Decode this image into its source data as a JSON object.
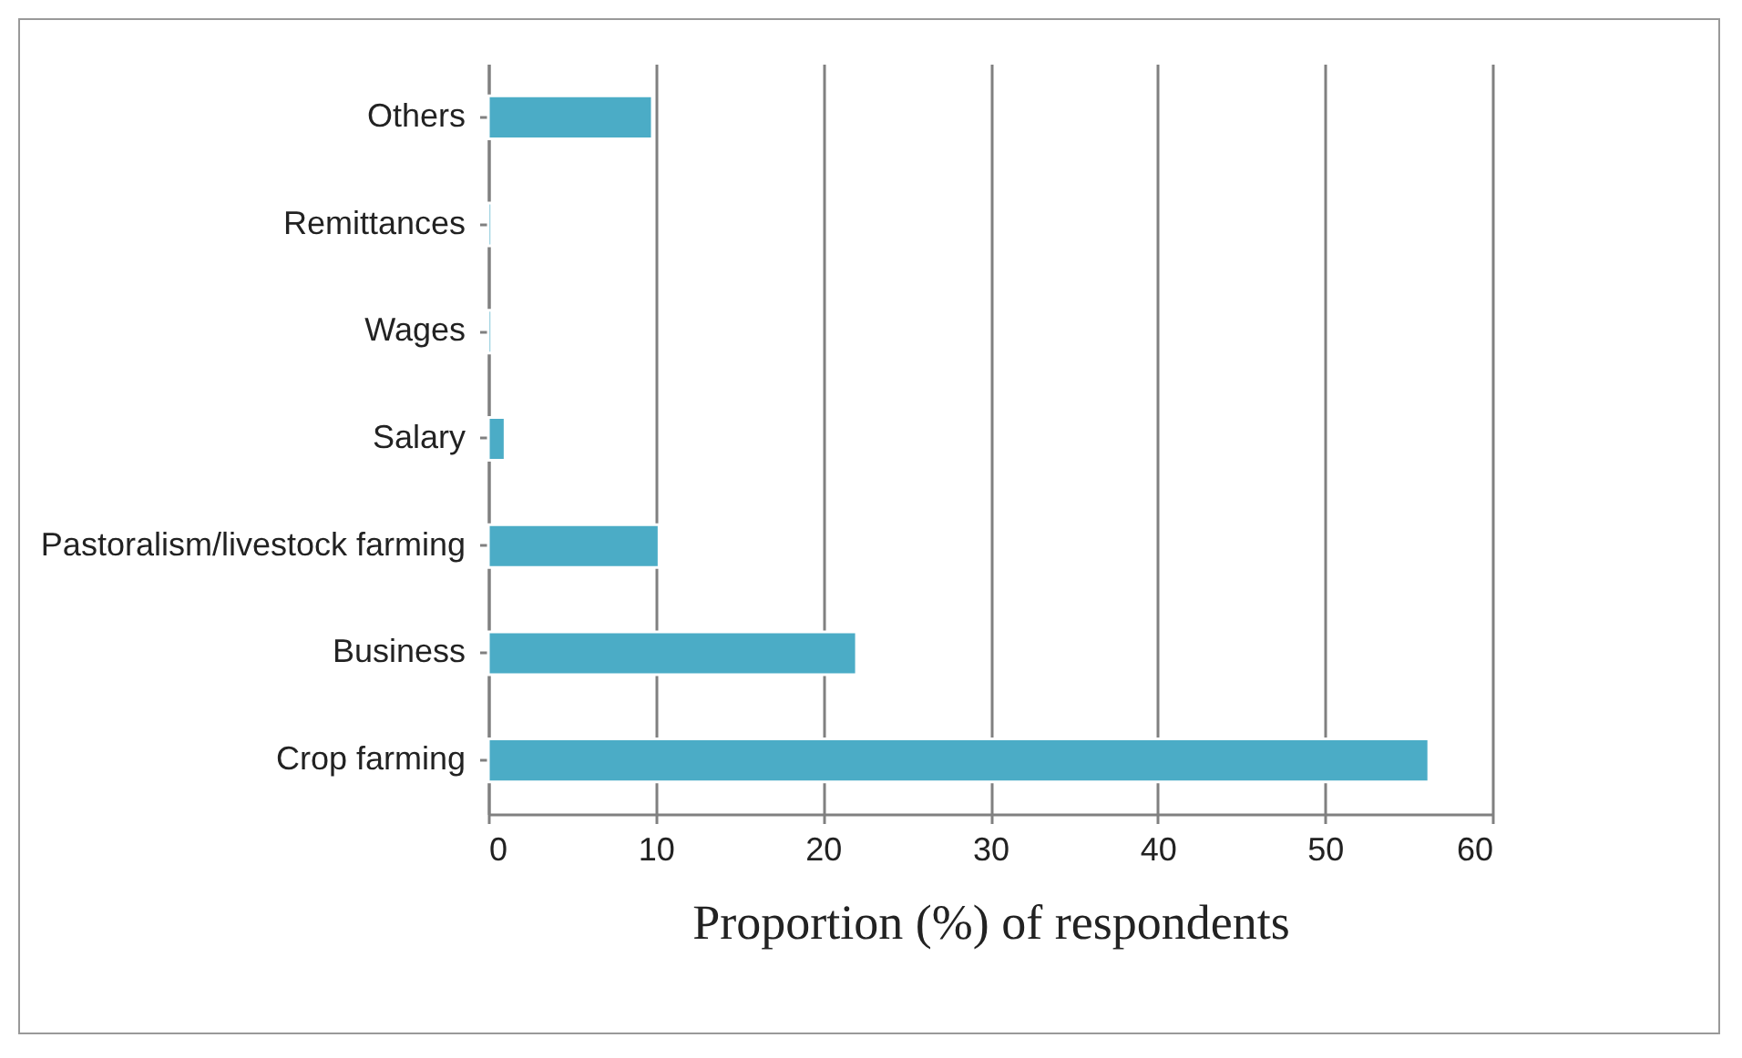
{
  "chart_data": {
    "type": "bar",
    "orientation": "horizontal",
    "xlabel": "Proportion (%) of respondents",
    "categories": [
      "Others",
      "Remittances",
      "Wages",
      "Salary",
      "Pastoralism/livestock farming",
      "Business",
      "Crop farming"
    ],
    "values": [
      9.8,
      0.2,
      0.2,
      1.0,
      10.2,
      22.0,
      56.2
    ],
    "color": "#4bacc6",
    "xlim": [
      0,
      60
    ],
    "xticks": [
      0,
      10,
      20,
      30,
      40,
      50,
      60
    ],
    "grid": "x"
  }
}
